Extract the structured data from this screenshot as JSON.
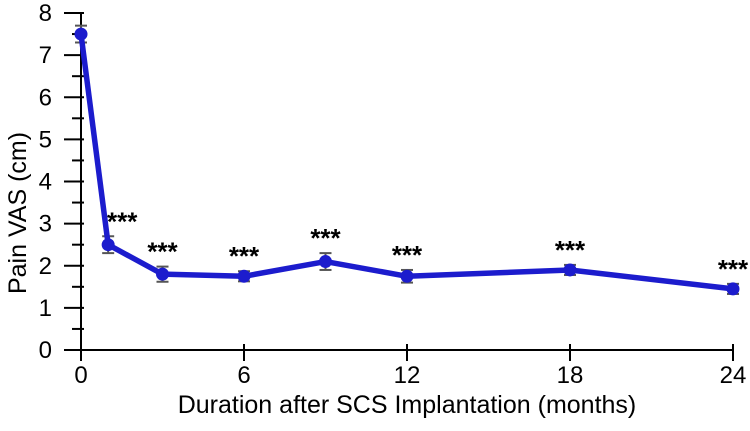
{
  "figure": {
    "description": "Line chart of pain visual analogue scale scores over time after spinal cord stimulator implantation"
  },
  "chart_data": {
    "type": "line",
    "title": "",
    "xlabel": "Duration after SCS Implantation (months)",
    "ylabel": "Pain VAS (cm)",
    "x": [
      0,
      1,
      3,
      6,
      9,
      12,
      18,
      24
    ],
    "y": [
      7.5,
      2.5,
      1.8,
      1.75,
      2.1,
      1.75,
      1.9,
      1.45
    ],
    "yerr": [
      0.2,
      0.2,
      0.18,
      0.12,
      0.2,
      0.15,
      0.12,
      0.12
    ],
    "significance": [
      "",
      "***",
      "***",
      "***",
      "***",
      "***",
      "***",
      "***"
    ],
    "xlim": [
      0,
      24
    ],
    "ylim": [
      0,
      8
    ],
    "xticks": [
      0,
      6,
      12,
      18,
      24
    ],
    "ytick_major_step": 1,
    "ytick_minor_step": 0.5,
    "grid": false,
    "legend": null,
    "colors": {
      "line": "#1c1ccd",
      "marker": "#1c1ccd",
      "error_bar": "#555555",
      "axis": "#000000",
      "text": "#000000",
      "background": "#ffffff"
    }
  }
}
